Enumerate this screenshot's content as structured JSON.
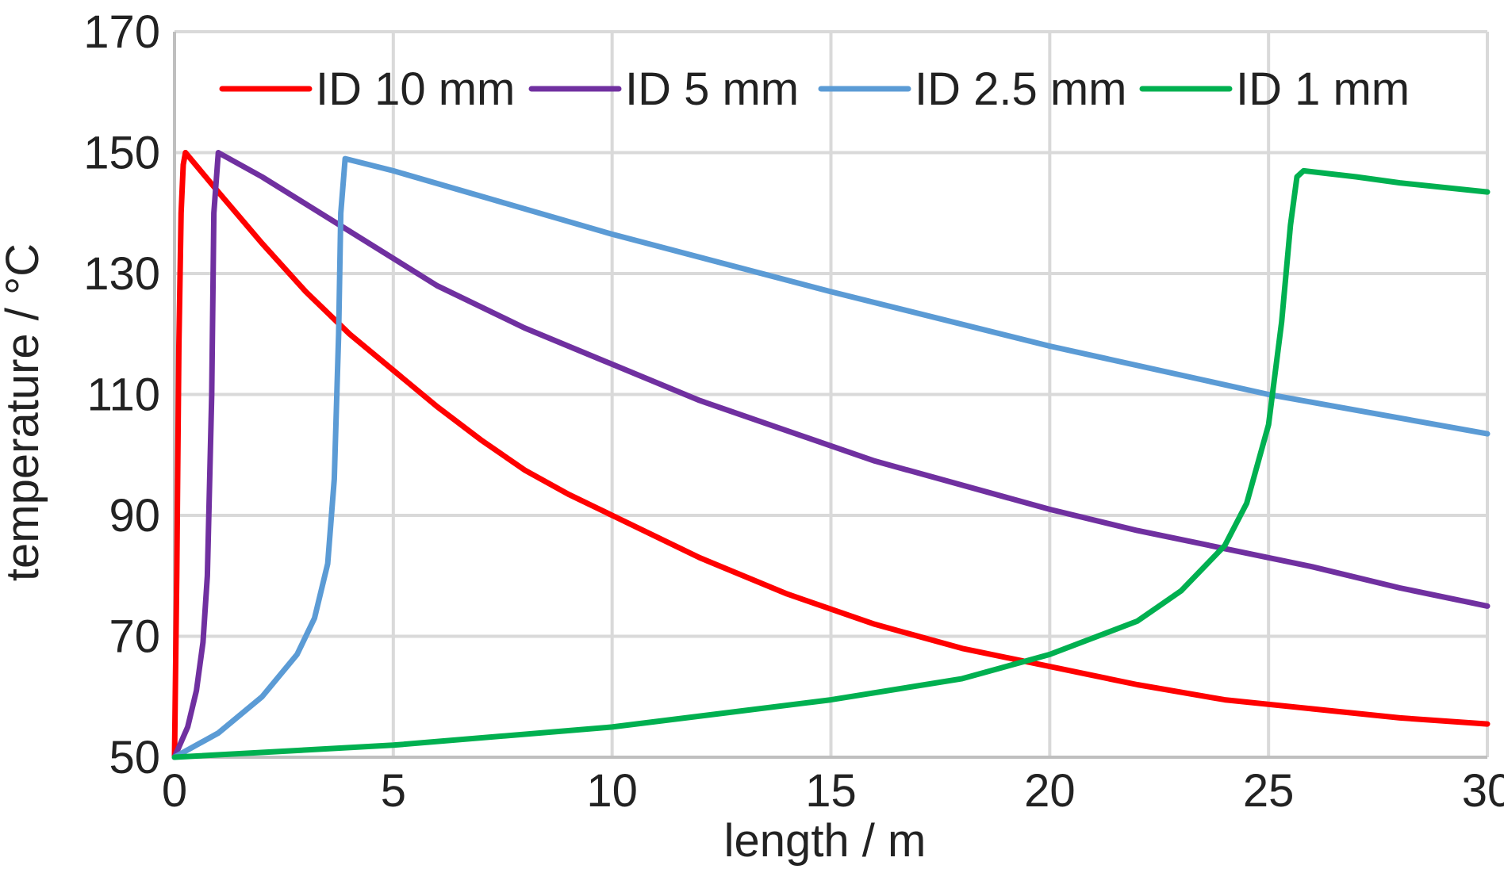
{
  "chart_data": {
    "type": "line",
    "title": "",
    "xlabel": "length / m",
    "ylabel": "temperature / °C",
    "xlim": [
      0,
      30
    ],
    "ylim": [
      50,
      170
    ],
    "xticks": [
      0,
      5,
      10,
      15,
      20,
      25,
      30
    ],
    "yticks": [
      50,
      70,
      90,
      110,
      130,
      150,
      170
    ],
    "grid": true,
    "legend": "top",
    "series": [
      {
        "name": "ID 10 mm",
        "color": "#ff0000",
        "x": [
          0,
          0.05,
          0.1,
          0.15,
          0.2,
          0.25,
          1,
          2,
          3,
          4,
          5,
          6,
          7,
          8,
          9,
          10,
          12,
          14,
          16,
          18,
          20,
          22,
          24,
          26,
          28,
          30
        ],
        "y": [
          50,
          80,
          118,
          140,
          148,
          150,
          143.5,
          135,
          127,
          120,
          114,
          108,
          102.5,
          97.5,
          93.5,
          90,
          83,
          77,
          72,
          68,
          65,
          62,
          59.5,
          58,
          56.5,
          55.5
        ]
      },
      {
        "name": "ID 5 mm",
        "color": "#7030a0",
        "x": [
          0,
          0.3,
          0.5,
          0.65,
          0.75,
          0.85,
          0.9,
          1.0,
          2,
          4,
          6,
          8,
          10,
          12,
          14,
          16,
          18,
          20,
          22,
          24,
          26,
          28,
          30
        ],
        "y": [
          50,
          55,
          61,
          69,
          80,
          110,
          140,
          150,
          146,
          137,
          128,
          121,
          115,
          109,
          104,
          99,
          95,
          91,
          87.5,
          84.5,
          81.5,
          78,
          75
        ]
      },
      {
        "name": "ID 2.5 mm",
        "color": "#5b9bd5",
        "x": [
          0,
          1,
          2,
          2.8,
          3.2,
          3.5,
          3.65,
          3.75,
          3.8,
          3.9,
          5,
          10,
          15,
          20,
          25,
          30
        ],
        "y": [
          50,
          54,
          60,
          67,
          73,
          82,
          96,
          120,
          140,
          149,
          147,
          136.5,
          127,
          118,
          110,
          103.5
        ]
      },
      {
        "name": "ID 1 mm",
        "color": "#00b050",
        "x": [
          0,
          5,
          10,
          15,
          18,
          20,
          22,
          23,
          24,
          24.5,
          25,
          25.3,
          25.5,
          25.65,
          25.8,
          27,
          28,
          30
        ],
        "y": [
          50,
          52,
          55,
          59.5,
          63,
          67,
          72.5,
          77.5,
          85,
          92,
          105,
          122,
          138,
          146,
          147,
          146,
          145,
          143.5
        ]
      }
    ]
  }
}
